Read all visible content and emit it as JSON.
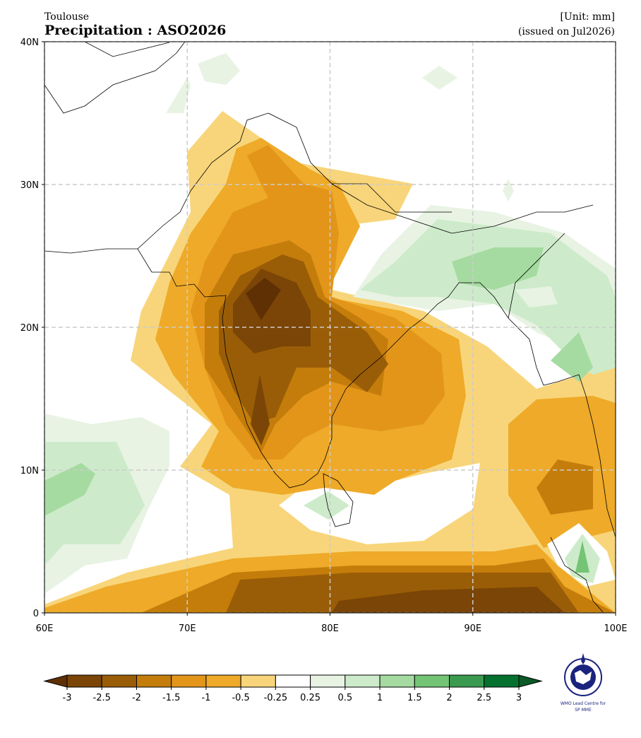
{
  "header": {
    "source": "Toulouse",
    "title": "Precipitation : ASO2026",
    "unit": "[Unit: mm]",
    "issued": "(issued on Jul2026)"
  },
  "map": {
    "lonlim": [
      60,
      100
    ],
    "latlim": [
      0,
      40
    ],
    "grid": true,
    "lat_ticks": [
      {
        "value": 40,
        "label": "40N"
      },
      {
        "value": 30,
        "label": "30N"
      },
      {
        "value": 20,
        "label": "20N"
      },
      {
        "value": 10,
        "label": "10N"
      },
      0
    ],
    "lon_ticks": [
      {
        "value": 60,
        "label": "60E"
      },
      {
        "value": 70,
        "label": "70E"
      },
      {
        "value": 80,
        "label": "80E"
      },
      {
        "value": 90,
        "label": "90E"
      },
      {
        "value": 100,
        "label": "100E"
      }
    ]
  },
  "colorbar": {
    "levels": [
      -3,
      -2.5,
      -2,
      -1.5,
      -1,
      -0.5,
      -0.25,
      0.25,
      0.5,
      1,
      1.5,
      2,
      2.5,
      3
    ],
    "colors": [
      "#7a4506",
      "#9a5d07",
      "#c47d0b",
      "#e3951a",
      "#eeaa28",
      "#f8d57a",
      "#ffffff",
      "#e8f3e3",
      "#cdebca",
      "#a5dba0",
      "#74c476",
      "#3a9a4f",
      "#05712f"
    ],
    "extend_colors": [
      "#5e3004",
      "#0b5a26"
    ]
  },
  "logo": {
    "line1": "WMO Lead Centre for",
    "line2": "SP MME"
  }
}
